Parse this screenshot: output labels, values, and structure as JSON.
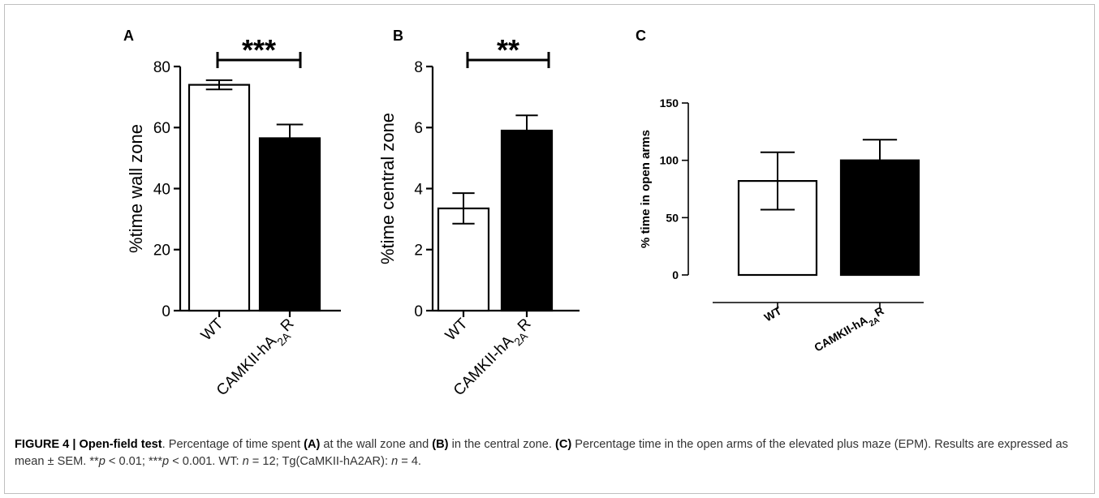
{
  "chart_data": [
    {
      "type": "bar",
      "panel_letter": "A",
      "ylabel": "%time wall zone",
      "categories": [
        "WT",
        "CAMKII-hA2AR"
      ],
      "values": [
        74,
        56.5
      ],
      "errors": [
        1.5,
        4.5
      ],
      "bar_colors": [
        "#ffffff",
        "#000000"
      ],
      "ylim": [
        0,
        80
      ],
      "yticks": [
        0,
        20,
        40,
        60,
        80
      ],
      "significance": "***"
    },
    {
      "type": "bar",
      "panel_letter": "B",
      "ylabel": "%time central zone",
      "categories": [
        "WT",
        "CAMKII-hA2AR"
      ],
      "values": [
        3.35,
        5.9
      ],
      "errors": [
        0.5,
        0.5
      ],
      "bar_colors": [
        "#ffffff",
        "#000000"
      ],
      "ylim": [
        0,
        8
      ],
      "yticks": [
        0,
        2,
        4,
        6,
        8
      ],
      "significance": "**"
    },
    {
      "type": "bar",
      "panel_letter": "C",
      "ylabel": "% time in open arms",
      "categories": [
        "WT",
        "CAMKII-hA2AR"
      ],
      "values": [
        82,
        100
      ],
      "errors": [
        25,
        18
      ],
      "bar_colors": [
        "#ffffff",
        "#000000"
      ],
      "ylim": [
        0,
        150
      ],
      "yticks": [
        0,
        50,
        100,
        150
      ]
    }
  ],
  "caption": {
    "label": "FIGURE 4 | Open-field test",
    "t1": ". Percentage of time spent ",
    "a": "(A)",
    "t2": " at the wall zone and ",
    "b": "(B)",
    "t3": " in the central zone. ",
    "c": "(C)",
    "t4": " Percentage time in the open arms of the elevated plus maze (EPM). Results are expressed as mean ± SEM. **",
    "p1": "p",
    "t5": " < 0.01; ***",
    "p2": "p",
    "t6": " < 0.001. WT: ",
    "n1": "n",
    "t7": " = 12; Tg(CaMKII-hA2AR): ",
    "n2": "n",
    "t8": " = 4."
  }
}
